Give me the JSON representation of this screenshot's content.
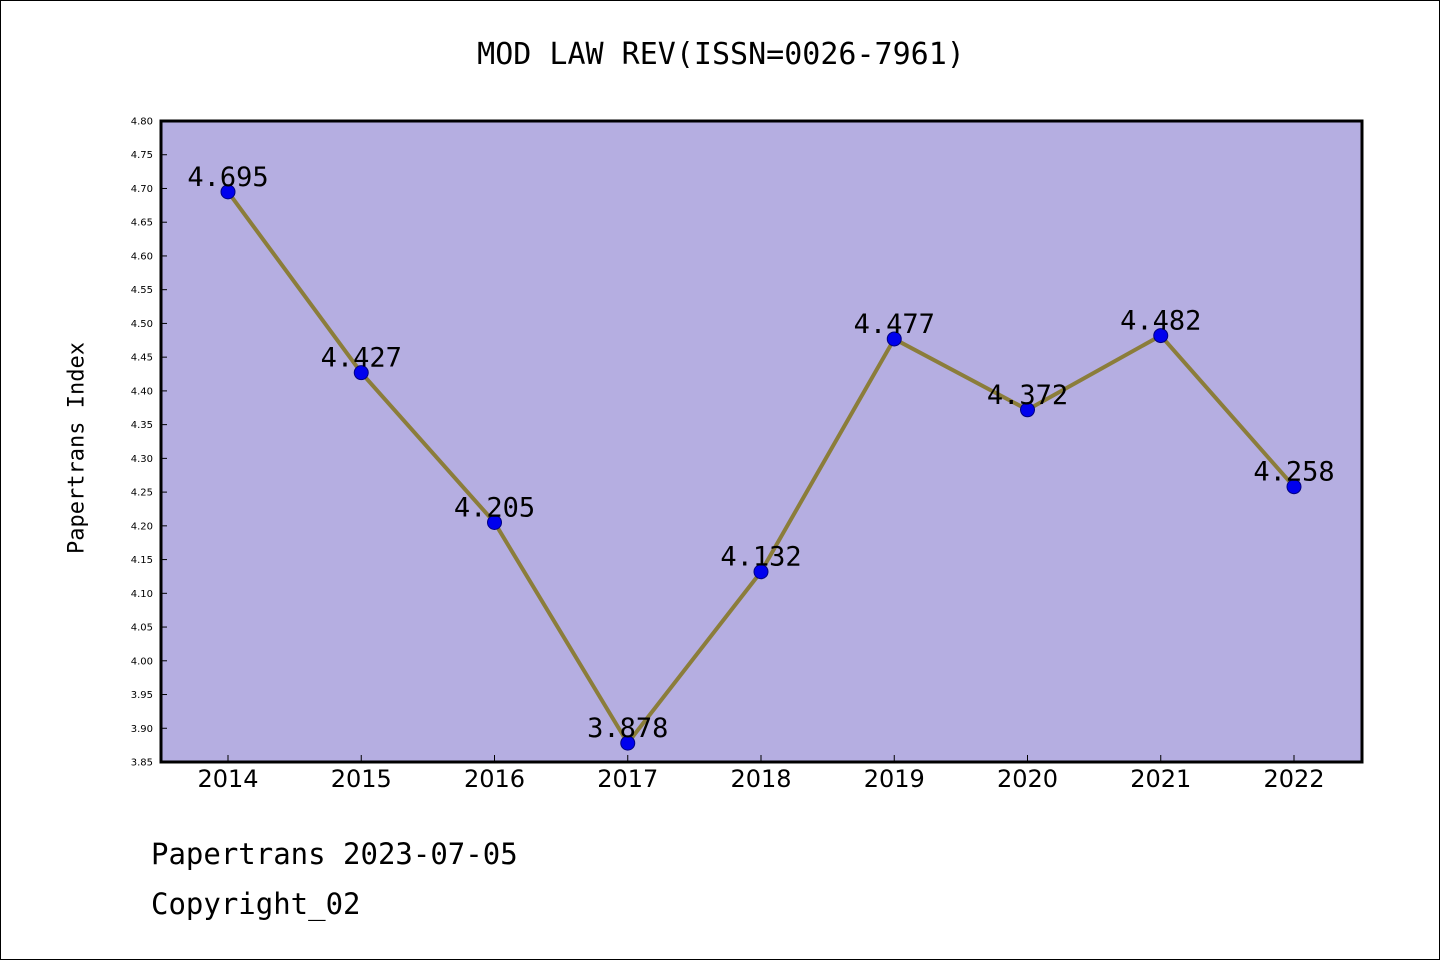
{
  "chart_data": {
    "type": "line",
    "title": "MOD LAW REV(ISSN=0026-7961)",
    "xlabel": "",
    "ylabel": "Papertrans Index",
    "categories": [
      "2014",
      "2015",
      "2016",
      "2017",
      "2018",
      "2019",
      "2020",
      "2021",
      "2022"
    ],
    "series": [
      {
        "values": [
          4.695,
          4.427,
          4.205,
          3.878,
          4.132,
          4.477,
          4.372,
          4.482,
          4.258
        ],
        "data_labels": [
          "4.695",
          "4.427",
          "4.205",
          "3.878",
          "4.132",
          "4.477",
          "4.372",
          "4.482",
          "4.258"
        ]
      }
    ],
    "ylim": [
      3.85,
      4.8
    ],
    "yticks": [
      "3.85",
      "3.90",
      "3.95",
      "4.00",
      "4.05",
      "4.10",
      "4.15",
      "4.20",
      "4.25",
      "4.30",
      "4.35",
      "4.40",
      "4.45",
      "4.50",
      "4.55",
      "4.60",
      "4.65",
      "4.70",
      "4.75",
      "4.80"
    ],
    "grid": false,
    "legend": "none",
    "colors": {
      "plot_background": "#b5aee1",
      "line": "#8b7d3a",
      "marker": "#0000ee",
      "marker_edge": "#000080"
    }
  },
  "footer": {
    "line1": "Papertrans 2023-07-05",
    "line2": "Copyright_02"
  }
}
